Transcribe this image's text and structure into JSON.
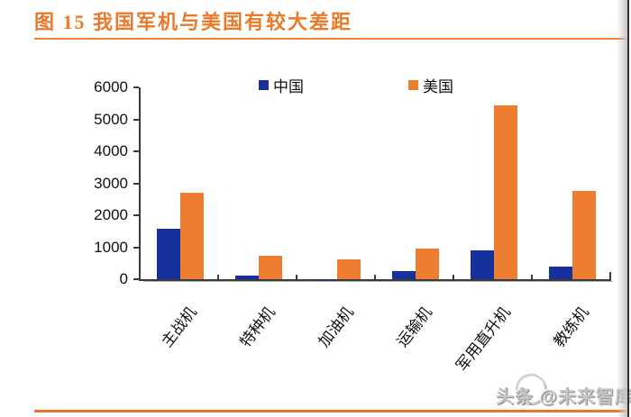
{
  "header": {
    "title": "图 15  我国军机与美国有较大差距"
  },
  "legend": {
    "china_label": "中国",
    "usa_label": "美国"
  },
  "chart_data": {
    "type": "bar",
    "categories": [
      "主战机",
      "特种机",
      "加油机",
      "运输机",
      "军用直升机",
      "教练机"
    ],
    "series": [
      {
        "name": "中国",
        "color": "#16309c",
        "values": [
          1571,
          111,
          3,
          264,
          902,
          405
        ]
      },
      {
        "name": "美国",
        "color": "#ed7d31",
        "values": [
          2717,
          745,
          627,
          945,
          5434,
          2764
        ]
      }
    ],
    "title": "图 15 我国军机与美国有较大差距",
    "xlabel": "",
    "ylabel": "",
    "ylim": [
      0,
      6000
    ],
    "ytick_step": 1000,
    "ytick_labels": [
      "0",
      "1000",
      "2000",
      "3000",
      "4000",
      "5000",
      "6000"
    ],
    "legend_position": "top",
    "grid": false
  },
  "colors": {
    "accent_orange": "#ed7d31",
    "title_orange": "#e87a2c",
    "axis": "#3a3a3a"
  },
  "watermark": {
    "text": "头条 @未来智库"
  }
}
